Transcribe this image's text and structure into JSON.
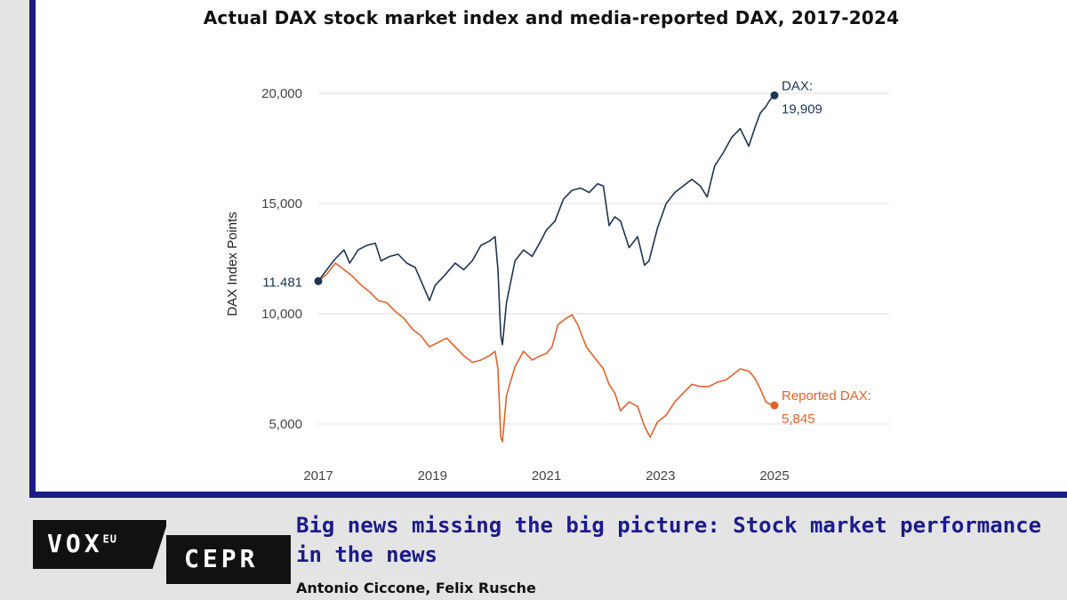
{
  "title": "Actual DAX stock market index and media-reported DAX, 2017-2024",
  "headline": "Big news missing the big picture: Stock market performance in the news",
  "authors": "Antonio Ciccone, Felix Rusche",
  "logo": {
    "vox": "VOX",
    "vox_sup": "EU",
    "cepr": "CEPR"
  },
  "colors": {
    "actual": "#1c3554",
    "reported": "#e0622c",
    "frame": "#1b1b8c",
    "grid": "#dcdcdc"
  },
  "chart_data": {
    "type": "line",
    "title": "Actual DAX stock market index and media-reported DAX, 2017-2024",
    "xlabel": "",
    "ylabel": "DAX Index Points",
    "xlim": [
      2017,
      2025
    ],
    "ylim": [
      4000,
      21000
    ],
    "x_ticks": [
      2017,
      2019,
      2021,
      2023,
      2025
    ],
    "y_ticks": [
      {
        "value": 5000,
        "label": "5,000"
      },
      {
        "value": 10000,
        "label": "10,000"
      },
      {
        "value": 15000,
        "label": "15,000"
      },
      {
        "value": 20000,
        "label": "20,000"
      }
    ],
    "start_label": "11.481",
    "grid": true,
    "series": [
      {
        "name": "DAX:",
        "end_label": "19,909",
        "x": [
          2017.0,
          2017.15,
          2017.3,
          2017.45,
          2017.55,
          2017.7,
          2017.85,
          2018.0,
          2018.1,
          2018.25,
          2018.4,
          2018.55,
          2018.7,
          2018.85,
          2018.95,
          2019.05,
          2019.2,
          2019.4,
          2019.55,
          2019.7,
          2019.85,
          2020.0,
          2020.1,
          2020.15,
          2020.2,
          2020.23,
          2020.3,
          2020.45,
          2020.6,
          2020.75,
          2020.9,
          2021.0,
          2021.15,
          2021.3,
          2021.45,
          2021.6,
          2021.75,
          2021.9,
          2022.0,
          2022.1,
          2022.2,
          2022.3,
          2022.45,
          2022.6,
          2022.72,
          2022.8,
          2022.95,
          2023.1,
          2023.25,
          2023.4,
          2023.55,
          2023.7,
          2023.82,
          2023.95,
          2024.1,
          2024.25,
          2024.4,
          2024.55,
          2024.65,
          2024.75,
          2024.85,
          2024.92,
          2025.0
        ],
        "y": [
          11481,
          12000,
          12500,
          12900,
          12300,
          12900,
          13100,
          13200,
          12400,
          12600,
          12700,
          12300,
          12100,
          11200,
          10600,
          11300,
          11700,
          12300,
          12000,
          12400,
          13100,
          13300,
          13500,
          12000,
          9000,
          8600,
          10500,
          12400,
          12900,
          12600,
          13300,
          13800,
          14200,
          15200,
          15600,
          15700,
          15500,
          15900,
          15800,
          14000,
          14400,
          14200,
          13000,
          13500,
          12200,
          12400,
          13900,
          15000,
          15500,
          15800,
          16100,
          15800,
          15300,
          16700,
          17300,
          18000,
          18400,
          17600,
          18400,
          19100,
          19400,
          19700,
          19909
        ]
      },
      {
        "name": "Reported DAX:",
        "end_label": "5,845",
        "x": [
          2017.0,
          2017.15,
          2017.3,
          2017.45,
          2017.6,
          2017.75,
          2017.9,
          2018.05,
          2018.2,
          2018.35,
          2018.5,
          2018.65,
          2018.8,
          2018.95,
          2019.1,
          2019.25,
          2019.4,
          2019.55,
          2019.7,
          2019.85,
          2020.0,
          2020.1,
          2020.15,
          2020.2,
          2020.23,
          2020.3,
          2020.45,
          2020.6,
          2020.75,
          2020.9,
          2021.0,
          2021.1,
          2021.2,
          2021.35,
          2021.45,
          2021.55,
          2021.7,
          2021.85,
          2022.0,
          2022.1,
          2022.2,
          2022.3,
          2022.45,
          2022.6,
          2022.72,
          2022.82,
          2022.95,
          2023.1,
          2023.25,
          2023.4,
          2023.55,
          2023.7,
          2023.85,
          2024.0,
          2024.15,
          2024.3,
          2024.4,
          2024.55,
          2024.65,
          2024.75,
          2024.85,
          2024.92,
          2025.0
        ],
        "y": [
          11481,
          11800,
          12300,
          12000,
          11700,
          11300,
          11000,
          10600,
          10500,
          10100,
          9800,
          9300,
          9000,
          8500,
          8700,
          8900,
          8500,
          8100,
          7800,
          7900,
          8100,
          8300,
          7500,
          4400,
          4200,
          6300,
          7600,
          8300,
          7900,
          8100,
          8200,
          8500,
          9500,
          9800,
          9950,
          9500,
          8500,
          8000,
          7500,
          6800,
          6400,
          5600,
          6000,
          5800,
          4900,
          4400,
          5100,
          5400,
          6000,
          6400,
          6800,
          6700,
          6700,
          6900,
          7000,
          7300,
          7500,
          7400,
          7100,
          6600,
          6000,
          5900,
          5845
        ]
      }
    ]
  }
}
